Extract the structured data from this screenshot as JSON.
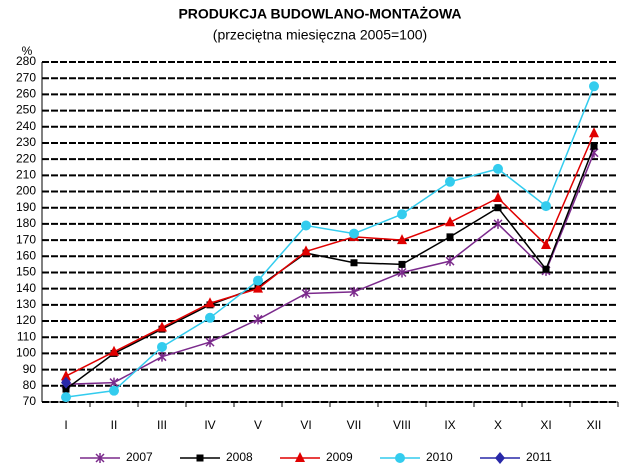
{
  "chart_data": {
    "type": "line",
    "title": "PRODUKCJA BUDOWLANO-MONTAŻOWA",
    "subtitle": "(przeciętna miesięczna 2005=100)",
    "y_label": "%",
    "categories": [
      "I",
      "II",
      "III",
      "IV",
      "V",
      "VI",
      "VII",
      "VIII",
      "IX",
      "X",
      "XI",
      "XII"
    ],
    "series": [
      {
        "name": "2007",
        "color": "#7b2a8c",
        "marker": "x",
        "values": [
          81,
          82,
          98,
          107,
          121,
          137,
          138,
          150,
          157,
          180,
          151,
          224
        ]
      },
      {
        "name": "2008",
        "color": "#000000",
        "marker": "square",
        "values": [
          78,
          100,
          115,
          130,
          141,
          162,
          156,
          155,
          172,
          190,
          152,
          228
        ]
      },
      {
        "name": "2009",
        "color": "#e00000",
        "marker": "triangle",
        "values": [
          86,
          101,
          116,
          131,
          140,
          163,
          172,
          170,
          181,
          196,
          167,
          236
        ]
      },
      {
        "name": "2010",
        "color": "#33ccee",
        "marker": "circle",
        "values": [
          73,
          77,
          104,
          122,
          145,
          179,
          174,
          186,
          206,
          214,
          191,
          265
        ]
      },
      {
        "name": "2011",
        "color": "#2828a8",
        "marker": "diamond",
        "values": [
          82,
          null,
          null,
          null,
          null,
          null,
          null,
          null,
          null,
          null,
          null,
          null
        ]
      }
    ],
    "ylim": [
      70,
      280
    ],
    "yticks": [
      70,
      80,
      90,
      100,
      110,
      120,
      130,
      140,
      150,
      160,
      170,
      180,
      190,
      200,
      210,
      220,
      230,
      240,
      250,
      260,
      270,
      280
    ],
    "grid": true
  }
}
